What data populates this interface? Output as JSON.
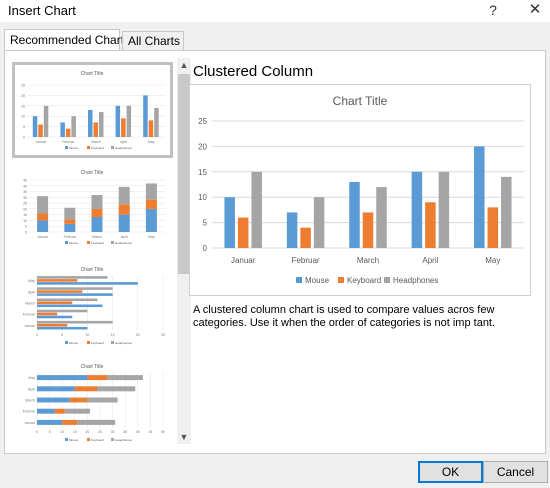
{
  "window": {
    "title": "Insert Chart",
    "help_glyph": "?",
    "close_glyph": "✕"
  },
  "tabs": [
    {
      "label": "Recommended Charts",
      "active": true
    },
    {
      "label": "All Charts",
      "active": false
    }
  ],
  "thumbnails": [
    {
      "name": "Clustered Column",
      "title": "Chart Title",
      "selected": true
    },
    {
      "name": "Stacked Column",
      "title": "Chart Title",
      "selected": false
    },
    {
      "name": "Clustered Bar",
      "title": "Chart Title",
      "selected": false
    },
    {
      "name": "Stacked Bar",
      "title": "Chart Title",
      "selected": false
    }
  ],
  "scrollbar": {
    "up_glyph": "▲",
    "down_glyph": "▼"
  },
  "preview": {
    "heading": "Clustered Column",
    "description": "A clustered column chart is used to compare values acros few categories. Use it when the order of categories is not imp tant."
  },
  "buttons": {
    "ok": "OK",
    "cancel": "Cancel"
  },
  "colors": {
    "mouse": "#5b9bd5",
    "keyboard": "#ed7d31",
    "headphones": "#a5a5a5",
    "selection": "#c0c0c0",
    "default_button_border": "#0078d7"
  },
  "chart_data": {
    "type": "bar",
    "title": "Chart Title",
    "categories": [
      "Januar",
      "Februar",
      "March",
      "April",
      "May"
    ],
    "series": [
      {
        "name": "Mouse",
        "values": [
          10,
          7,
          13,
          15,
          20
        ]
      },
      {
        "name": "Keyboard",
        "values": [
          6,
          4,
          7,
          9,
          8
        ]
      },
      {
        "name": "Headphones",
        "values": [
          15,
          10,
          12,
          15,
          14
        ]
      }
    ],
    "ylim": [
      0,
      25
    ],
    "yticks": [
      0,
      5,
      10,
      15,
      20,
      25
    ],
    "grid": true,
    "legend": "bottom"
  }
}
